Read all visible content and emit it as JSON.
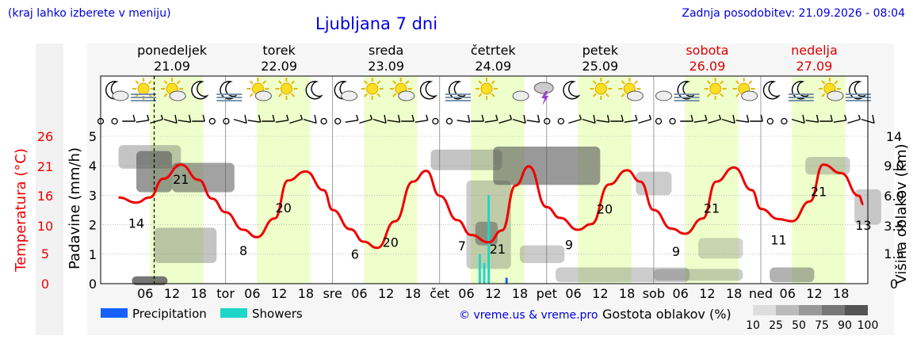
{
  "header": {
    "hint": "(kraj lahko izberete v meniju)",
    "title": "Ljubljana 7 dni",
    "updated": "Zadnja posodobitev: 21.09.2026 - 08:04"
  },
  "days": [
    {
      "name": "ponedeljek",
      "date": "21.09",
      "weekend": false,
      "short": ""
    },
    {
      "name": "torek",
      "date": "22.09",
      "weekend": false,
      "short": "tor"
    },
    {
      "name": "sreda",
      "date": "23.09",
      "weekend": false,
      "short": "sre"
    },
    {
      "name": "četrtek",
      "date": "24.09",
      "weekend": false,
      "short": "čet"
    },
    {
      "name": "petek",
      "date": "25.09",
      "weekend": false,
      "short": "pet"
    },
    {
      "name": "sobota",
      "date": "26.09",
      "weekend": true,
      "short": "sob"
    },
    {
      "name": "nedelja",
      "date": "27.09",
      "weekend": true,
      "short": "ned"
    }
  ],
  "hour_ticks": [
    "06",
    "12",
    "18"
  ],
  "weather_icons": [
    "moon-cloud",
    "sun-fog",
    "sun-cloud",
    "moon",
    "moon-fog",
    "sun-cloud",
    "sun",
    "moon",
    "moon-cloud",
    "sun",
    "sun-cloud",
    "moon",
    "moon-fog",
    "sun",
    "cloud",
    "thunder",
    "moon",
    "sun",
    "sun-cloud",
    "cloud",
    "moon-fog",
    "sun",
    "sun-cloud",
    "moon",
    "moon-fog",
    "sun-cloud",
    "moon-fog"
  ],
  "legend": {
    "precipitation": "Precipitation",
    "showers": "Showers",
    "copyright": "© vreme.us & vreme.pro",
    "cloud_density": "Gostota oblakov (%)",
    "density_levels": [
      "10",
      "25",
      "50",
      "75",
      "90",
      "100"
    ]
  },
  "colors": {
    "temperature": "#ee0000",
    "precipitation": "#1560ff",
    "showers": "#1ed6c8",
    "weekend": "#dd0000",
    "title": "#0000dd",
    "daylight": "#eeffcc"
  },
  "chart_data": {
    "type": "line",
    "x_unit": "hour since 21.09 00:00",
    "y_left_precip": {
      "label": "Padavine (mm/h)",
      "ticks": [
        "0",
        "1",
        "2",
        "3",
        "4",
        "5"
      ],
      "range": [
        0,
        5
      ]
    },
    "y_left_temp": {
      "label": "Temperatura (°C)",
      "ticks": [
        "0",
        "5",
        "10",
        "16",
        "21",
        "26"
      ],
      "range": [
        0,
        26
      ]
    },
    "y_right": {
      "label": "Višina oblakov (km)",
      "ticks": [
        "0",
        "1.5",
        "3.5",
        "6.0",
        "9.0",
        "14"
      ],
      "range": [
        0,
        14
      ]
    },
    "series": [
      {
        "name": "Temperatura",
        "x": [
          0,
          4,
          7,
          10,
          14,
          18,
          21,
          24,
          28,
          31,
          35,
          38,
          42,
          46,
          48,
          52,
          55,
          58,
          62,
          66,
          69,
          72,
          76,
          79,
          83,
          86,
          89,
          92,
          96,
          99,
          103,
          106,
          110,
          114,
          117,
          120,
          124,
          127,
          131,
          134,
          138,
          142,
          144,
          148,
          151,
          155,
          158,
          162,
          166,
          167
        ],
        "y": [
          15.2,
          14.3,
          15.2,
          18.5,
          21.0,
          18.3,
          15.0,
          12.6,
          9.5,
          8.2,
          11.5,
          18.2,
          19.8,
          16.5,
          13.0,
          9.6,
          7.4,
          6.3,
          11.0,
          18.0,
          19.9,
          15.5,
          11.2,
          8.6,
          7.3,
          9.4,
          17.3,
          20.7,
          13.5,
          11.6,
          9.5,
          10.5,
          17.5,
          20.0,
          18.0,
          13.0,
          9.7,
          8.8,
          11.5,
          18.0,
          20.5,
          16.5,
          13.2,
          11.4,
          11.0,
          14.5,
          21.0,
          19.5,
          15.5,
          14.0
        ]
      },
      {
        "name": "Precipitation",
        "x": [
          87
        ],
        "y": [
          0.2
        ]
      },
      {
        "name": "Showers",
        "x": [
          81,
          82,
          83
        ],
        "y": [
          1.0,
          0.7,
          3.0
        ]
      }
    ],
    "temp_labels": [
      {
        "x": 4,
        "text": "14"
      },
      {
        "x": 14,
        "text": "21"
      },
      {
        "x": 28,
        "text": "8"
      },
      {
        "x": 37,
        "text": "20"
      },
      {
        "x": 53,
        "text": "6"
      },
      {
        "x": 61,
        "text": "20"
      },
      {
        "x": 77,
        "text": "7"
      },
      {
        "x": 85,
        "text": "21"
      },
      {
        "x": 101,
        "text": "9"
      },
      {
        "x": 109,
        "text": "20"
      },
      {
        "x": 125,
        "text": "9"
      },
      {
        "x": 133,
        "text": "21"
      },
      {
        "x": 148,
        "text": "11"
      },
      {
        "x": 157,
        "text": "21"
      },
      {
        "x": 167,
        "text": "13"
      }
    ],
    "now_hour": 8,
    "grid": true
  }
}
